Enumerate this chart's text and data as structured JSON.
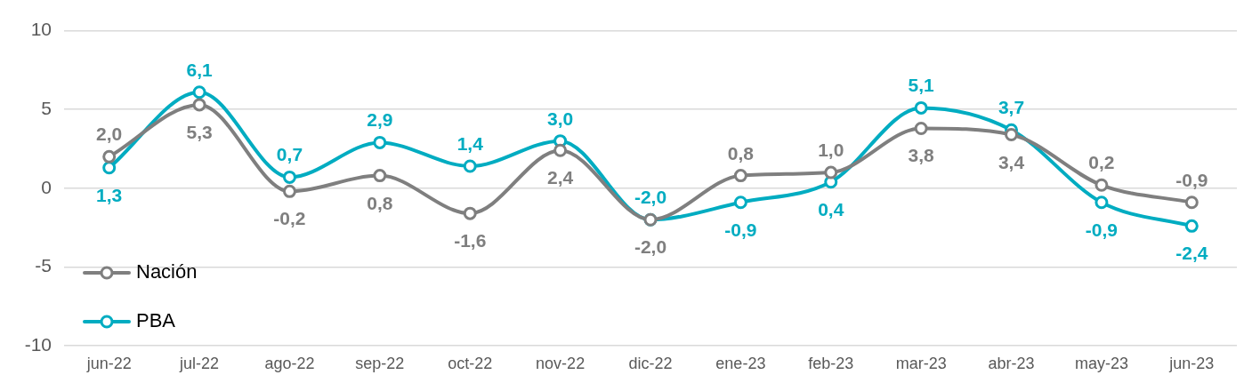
{
  "chart_data": {
    "type": "line",
    "categories": [
      "jun-22",
      "jul-22",
      "ago-22",
      "sep-22",
      "oct-22",
      "nov-22",
      "dic-22",
      "ene-23",
      "feb-23",
      "mar-23",
      "abr-23",
      "may-23",
      "jun-23"
    ],
    "series": [
      {
        "name": "Nación",
        "color": "#7f7f7f",
        "values": [
          2.0,
          5.3,
          -0.2,
          0.8,
          -1.6,
          2.4,
          -2.0,
          0.8,
          1.0,
          3.8,
          3.4,
          0.2,
          -0.9
        ],
        "value_labels": [
          "2,0",
          "5,3",
          "-0,2",
          "0,8",
          "-1,6",
          "2,4",
          "-2,0",
          "0,8",
          "1,0",
          "3,8",
          "3,4",
          "0,2",
          "-0,9"
        ]
      },
      {
        "name": "PBA",
        "color": "#00acc1",
        "values": [
          1.3,
          6.1,
          0.7,
          2.9,
          1.4,
          3.0,
          -2.0,
          -0.9,
          0.4,
          5.1,
          3.7,
          -0.9,
          -2.4
        ],
        "value_labels": [
          "1,3",
          "6,1",
          "0,7",
          "2,9",
          "1,4",
          "3,0",
          "-2,0",
          "-0,9",
          "0,4",
          "5,1",
          "3,7",
          "-0,9",
          "-2,4"
        ]
      }
    ],
    "ylim": [
      -10,
      10
    ],
    "yticks": [
      -10,
      -5,
      0,
      5,
      10
    ],
    "grid": "y",
    "legend": "bottom left",
    "marker": "circle"
  }
}
